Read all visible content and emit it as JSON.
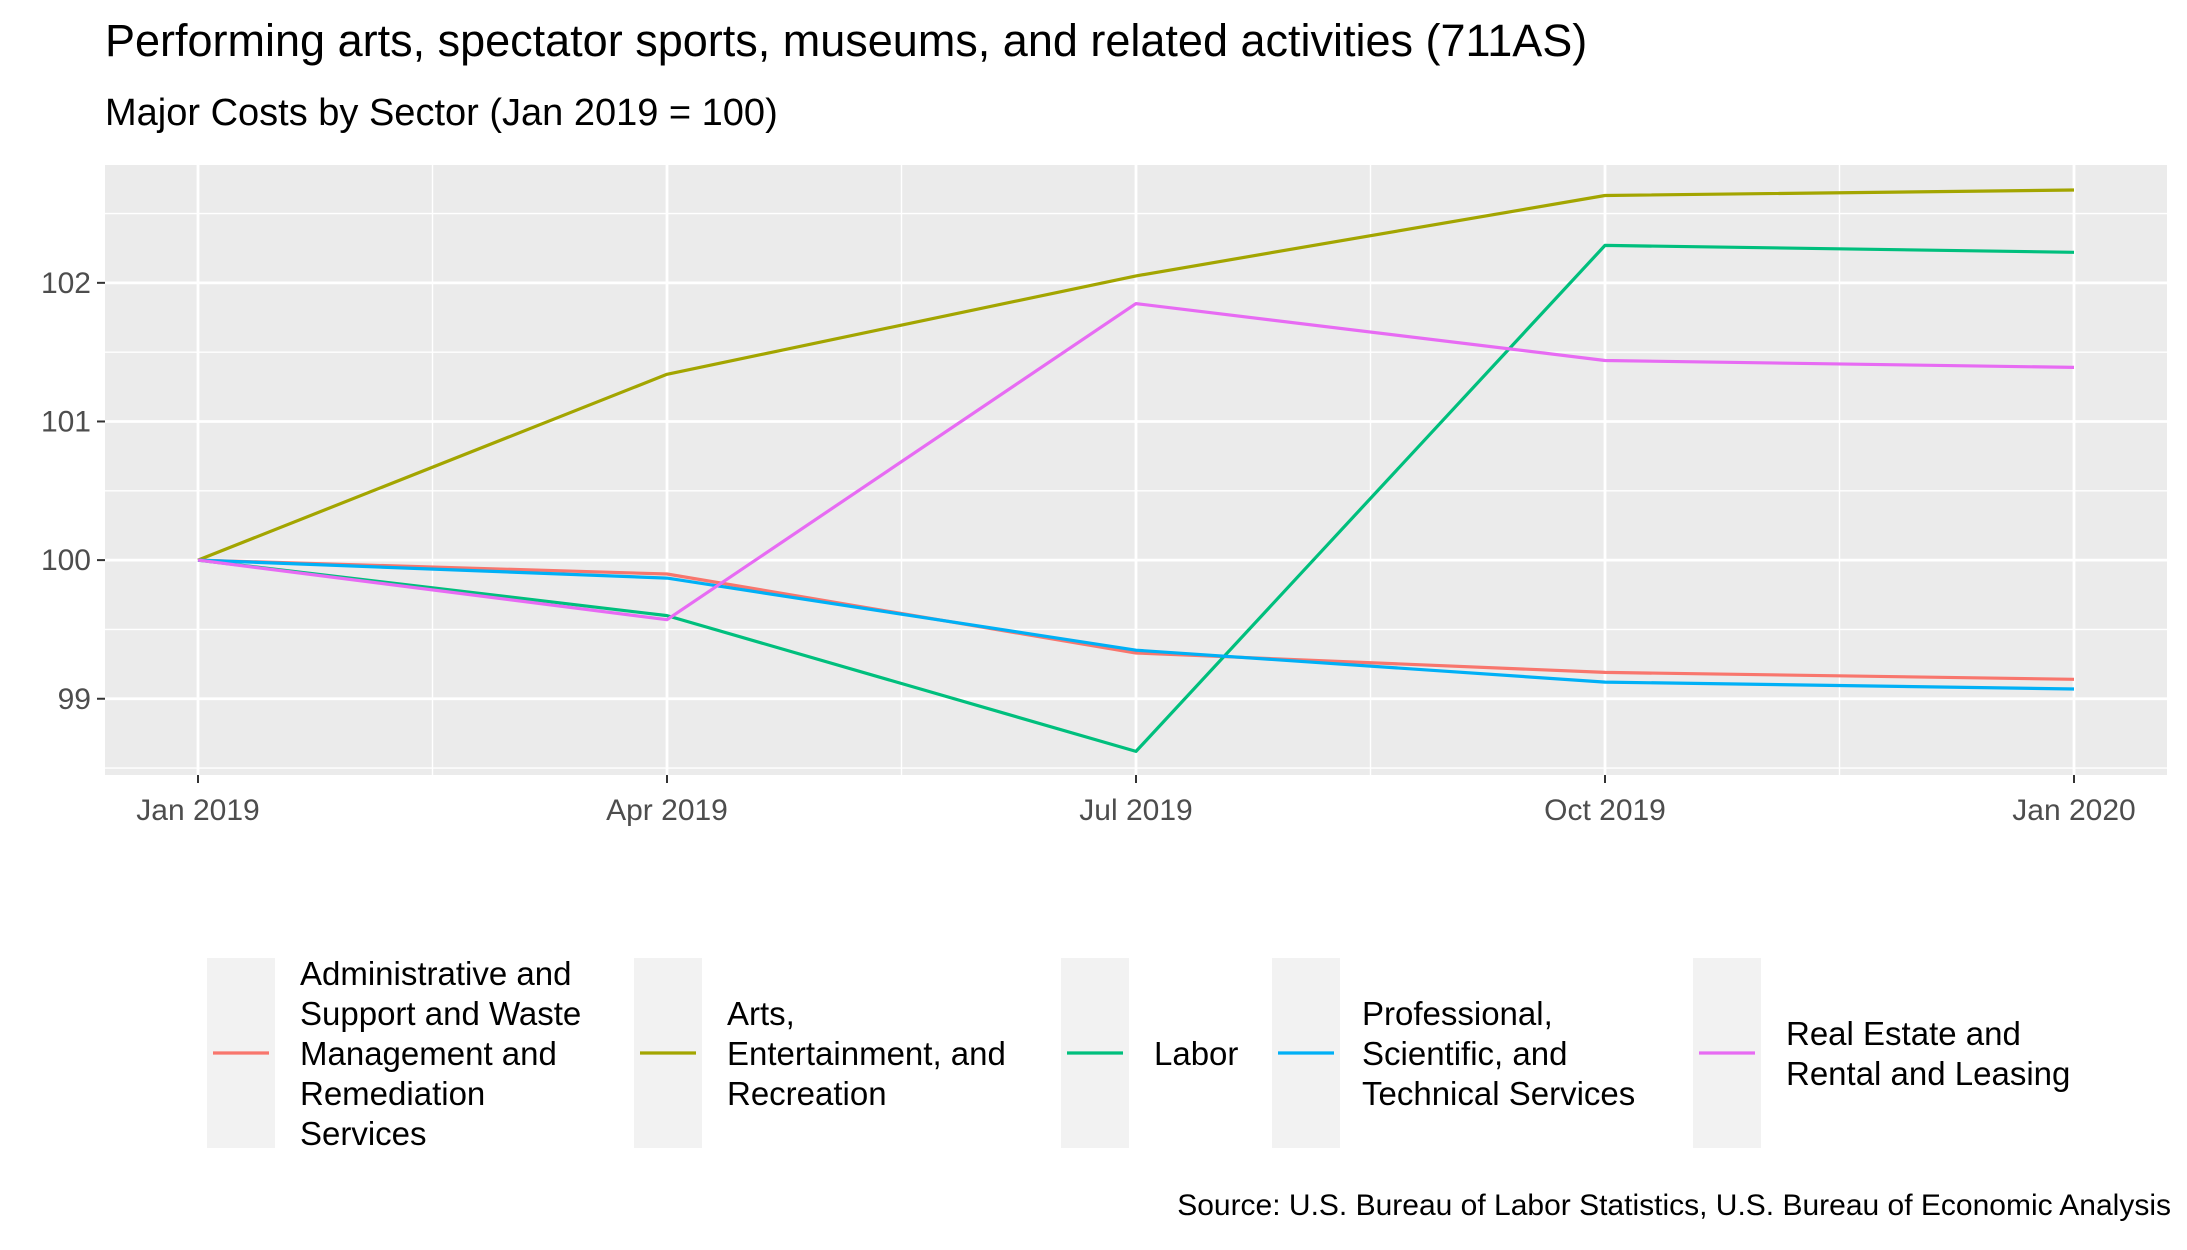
{
  "chart_data": {
    "type": "line",
    "title": "Performing arts, spectator sports, museums, and related activities (711AS)",
    "subtitle": "Major Costs by Sector (Jan 2019 = 100)",
    "caption": "Source: U.S. Bureau of Labor Statistics, U.S. Bureau of Economic Analysis",
    "x": [
      "Jan 2019",
      "Apr 2019",
      "Jul 2019",
      "Oct 2019",
      "Jan 2020"
    ],
    "x_ticks": [
      "Jan 2019",
      "Apr 2019",
      "Jul 2019",
      "Oct 2019",
      "Jan 2020"
    ],
    "y_ticks": [
      99,
      100,
      101,
      102
    ],
    "ylim": [
      98.45,
      102.85
    ],
    "grid": true,
    "legend_position": "bottom",
    "series": [
      {
        "name": "Administrative and Support and Waste Management and Remediation Services",
        "legend_lines": [
          "Administrative and",
          "Support and Waste",
          "Management and",
          "Remediation",
          "Services"
        ],
        "color": "#F8766D",
        "values": [
          100.0,
          99.9,
          99.33,
          99.19,
          99.14
        ]
      },
      {
        "name": "Arts, Entertainment, and Recreation",
        "legend_lines": [
          "Arts,",
          "Entertainment, and",
          "Recreation"
        ],
        "color": "#A3A500",
        "values": [
          100.0,
          101.34,
          102.05,
          102.63,
          102.67
        ]
      },
      {
        "name": "Labor",
        "legend_lines": [
          "Labor"
        ],
        "color": "#00BF7D",
        "values": [
          100.0,
          99.6,
          98.62,
          102.27,
          102.22
        ]
      },
      {
        "name": "Professional, Scientific, and Technical Services",
        "legend_lines": [
          "Professional,",
          "Scientific, and",
          "Technical Services"
        ],
        "color": "#00B0F6",
        "values": [
          100.0,
          99.87,
          99.35,
          99.12,
          99.07
        ]
      },
      {
        "name": "Real Estate and Rental and Leasing",
        "legend_lines": [
          "Real Estate and",
          "Rental and Leasing"
        ],
        "color": "#E76BF3",
        "values": [
          100.0,
          99.57,
          101.85,
          101.44,
          101.39
        ]
      }
    ]
  }
}
